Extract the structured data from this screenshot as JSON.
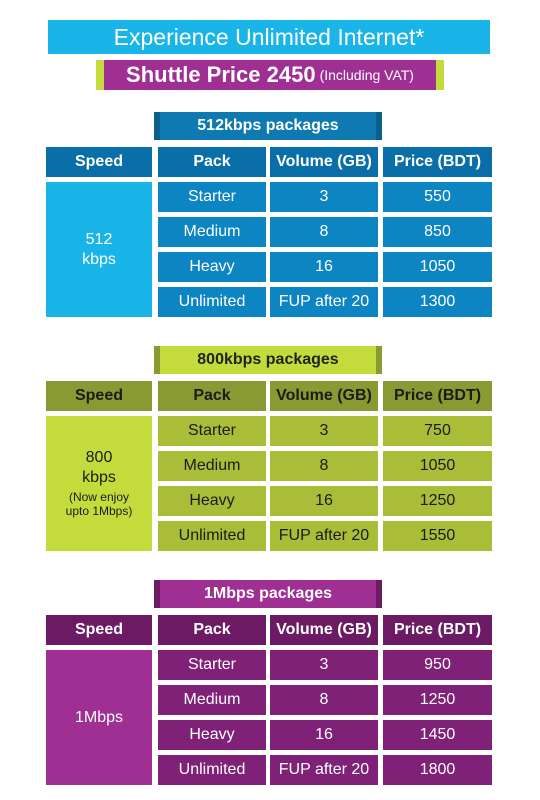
{
  "header": {
    "title": "Experience Unlimited Internet*",
    "shuttle_price": "Shuttle Price 2450",
    "shuttle_note": "(Including VAT)"
  },
  "columns": {
    "speed": "Speed",
    "pack": "Pack",
    "volume": "Volume (GB)",
    "price": "Price (BDT)"
  },
  "sections": [
    {
      "title": "512kbps packages",
      "speed_main": "512\nkbps",
      "speed_sub": "",
      "rows": [
        {
          "pack": "Starter",
          "volume": "3",
          "price": "550"
        },
        {
          "pack": "Medium",
          "volume": "8",
          "price": "850"
        },
        {
          "pack": "Heavy",
          "volume": "16",
          "price": "1050"
        },
        {
          "pack": "Unlimited",
          "volume": "FUP after 20",
          "price": "1300"
        }
      ]
    },
    {
      "title": "800kbps packages",
      "speed_main": "800\nkbps",
      "speed_sub": "(Now enjoy\nupto 1Mbps)",
      "rows": [
        {
          "pack": "Starter",
          "volume": "3",
          "price": "750"
        },
        {
          "pack": "Medium",
          "volume": "8",
          "price": "1050"
        },
        {
          "pack": "Heavy",
          "volume": "16",
          "price": "1250"
        },
        {
          "pack": "Unlimited",
          "volume": "FUP after 20",
          "price": "1550"
        }
      ]
    },
    {
      "title": "1Mbps packages",
      "speed_main": "1Mbps",
      "speed_sub": "",
      "rows": [
        {
          "pack": "Starter",
          "volume": "3",
          "price": "950"
        },
        {
          "pack": "Medium",
          "volume": "8",
          "price": "1250"
        },
        {
          "pack": "Heavy",
          "volume": "16",
          "price": "1450"
        },
        {
          "pack": "Unlimited",
          "volume": "FUP after 20",
          "price": "1800"
        }
      ]
    }
  ]
}
